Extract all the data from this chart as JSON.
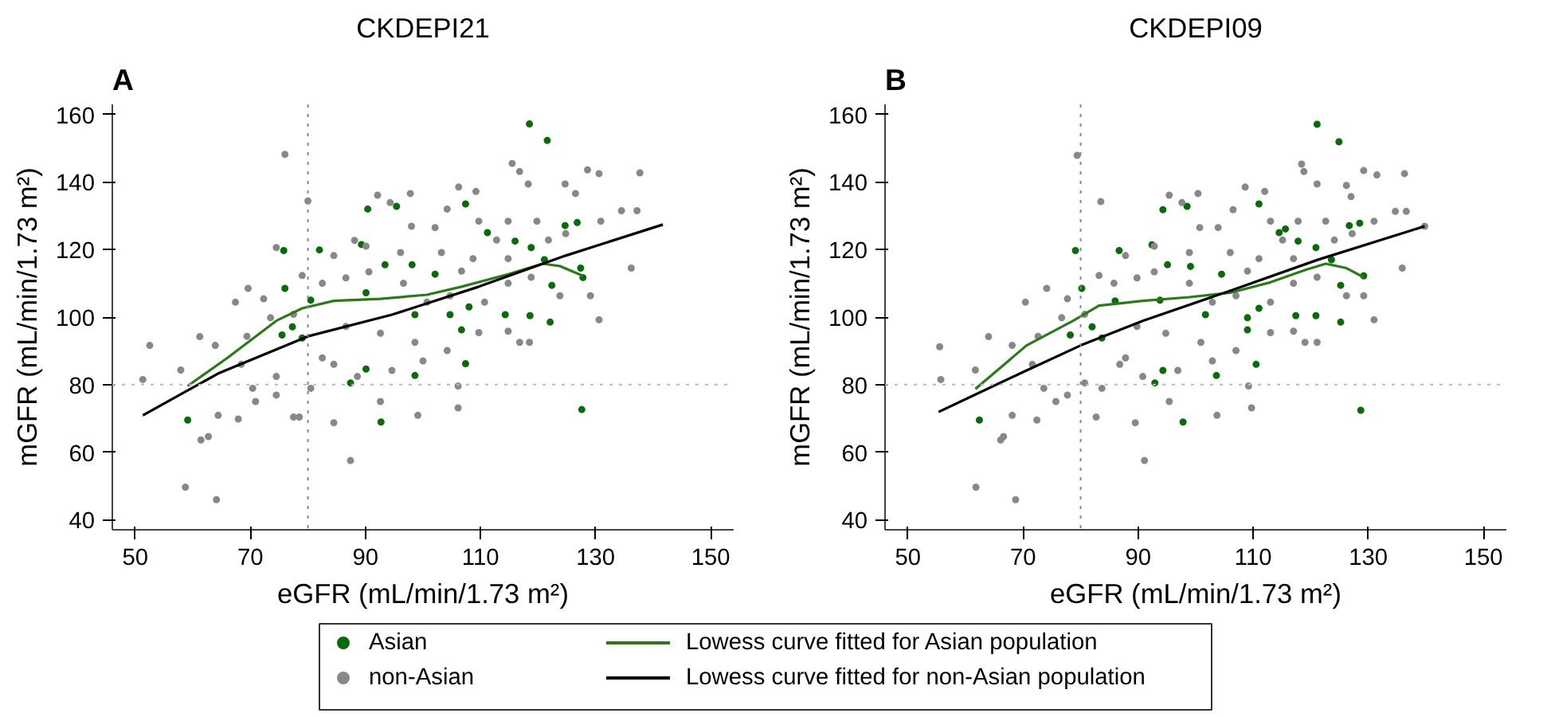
{
  "chart_data": [
    {
      "type": "scatter",
      "title": "CKDEPI21",
      "annotations": [
        "A"
      ],
      "xlabel": "eGFR (mL/min/1.73 m²)",
      "ylabel": "mGFR (mL/min/1.73 m²)",
      "xlim": [
        46,
        154
      ],
      "ylim": [
        37,
        163
      ],
      "xticks": [
        50,
        70,
        90,
        110,
        130,
        150
      ],
      "yticks": [
        40,
        60,
        80,
        100,
        120,
        140,
        160
      ],
      "marker": "circle",
      "legend": "bottom",
      "ref_lines": [
        {
          "axis": "x",
          "value": 80,
          "color": "#888888",
          "line_style": "dotted"
        },
        {
          "axis": "y",
          "value": 80,
          "color": "#bbbbbb",
          "line_style": "dotted"
        }
      ],
      "series": [
        {
          "name": "Asian",
          "color": "#0b6b0b",
          "x": [
            118.5,
            121.6,
            90.4,
            95.4,
            107.4,
            89.3,
            75.8,
            82.0,
            76.0,
            111.2,
            124.7,
            126.8,
            116.0,
            118.8,
            93.4,
            98.1,
            102.1,
            90.1,
            80.5,
            98.6,
            104.7,
            108.0,
            75.5,
            77.3,
            79.0,
            90.1,
            87.4,
            98.6,
            107.4,
            106.7,
            114.3,
            118.6,
            122.1,
            122.4,
            127.4,
            127.6,
            59.1,
            92.7,
            127.8,
            121.1
          ],
          "values": [
            157.2,
            152.3,
            132.0,
            132.8,
            133.5,
            121.5,
            119.7,
            119.9,
            108.5,
            125.0,
            127.1,
            128.0,
            122.5,
            120.6,
            115.5,
            115.5,
            112.7,
            107.2,
            105.0,
            100.7,
            100.7,
            103.0,
            94.7,
            97.1,
            93.8,
            84.6,
            80.5,
            82.7,
            86.2,
            96.2,
            100.7,
            100.4,
            98.5,
            109.4,
            114.5,
            72.6,
            69.5,
            68.9,
            111.7,
            117.0
          ]
        },
        {
          "name": "non-Asian",
          "color": "#888888",
          "x": [
            51.3,
            52.5,
            57.9,
            58.7,
            61.2,
            61.4,
            62.7,
            64.1,
            63.9,
            64.4,
            67.4,
            67.9,
            69.6,
            70.9,
            72.3,
            74.5,
            74.5,
            76.0,
            77.5,
            79.0,
            80.0,
            78.5,
            82.5,
            84.5,
            87.4,
            88.1,
            92.1,
            92.6,
            94.3,
            97.8,
            98.0,
            99.1,
            102.1,
            104.2,
            106.1,
            106.1,
            106.2,
            109.2,
            109.7,
            114.8,
            115.5,
            116.8,
            118.3,
            118.5,
            119.8,
            124.7,
            126.5,
            128.6,
            130.6,
            130.9,
            130.6,
            129.1,
            134.5,
            136.2,
            137.2,
            137.7,
            114.8,
            116.8,
            109.7,
            104.2,
            100.0,
            94.6,
            88.6,
            84.5,
            80.5,
            74.5,
            70.4,
            68.4,
            69.4,
            73.5,
            86.6,
            90.6,
            96.6,
            100.7,
            104.7,
            110.7,
            114.8,
            118.8,
            123.8,
            108.7,
            112.8,
            103.2,
            96.1,
            90.1,
            84.5,
            82.5,
            77.5,
            86.6,
            92.6,
            98.6,
            106.7,
            114.8,
            121.8,
            124.8
          ],
          "values": [
            81.5,
            91.6,
            84.3,
            49.6,
            94.2,
            63.6,
            64.6,
            45.9,
            91.6,
            70.9,
            104.4,
            69.8,
            108.5,
            75.0,
            105.4,
            120.6,
            82.4,
            148.2,
            70.4,
            112.3,
            134.4,
            70.4,
            87.9,
            68.7,
            57.5,
            122.7,
            136.1,
            75.0,
            133.9,
            136.6,
            126.9,
            70.9,
            126.5,
            132.0,
            73.1,
            79.6,
            138.5,
            137.2,
            128.4,
            128.4,
            145.5,
            143.1,
            139.4,
            92.5,
            128.4,
            139.4,
            136.6,
            143.6,
            142.5,
            128.4,
            99.2,
            106.3,
            131.5,
            114.5,
            131.5,
            142.7,
            95.8,
            92.5,
            95.4,
            90.1,
            87.0,
            84.2,
            82.4,
            86.0,
            78.9,
            76.9,
            78.9,
            86.0,
            94.3,
            99.8,
            111.6,
            113.4,
            110.0,
            104.4,
            106.3,
            104.4,
            110.0,
            111.8,
            106.3,
            117.3,
            122.8,
            119.1,
            119.1,
            121.0,
            118.2,
            110.0,
            100.8,
            97.2,
            95.2,
            92.5,
            113.6,
            117.3,
            122.8,
            124.7
          ]
        },
        {
          "name": "Lowess curve fitted for Asian population",
          "type": "line",
          "marker": "none",
          "color": "#2a7a1a",
          "x": [
            59.1,
            66.0,
            74.5,
            79.0,
            84.5,
            92.6,
            100.7,
            106.7,
            114.8,
            120.8,
            123.8,
            127.8
          ],
          "values": [
            79.6,
            87.9,
            98.9,
            102.6,
            104.8,
            105.4,
            106.6,
            109.0,
            112.7,
            115.8,
            115.1,
            112.2
          ]
        },
        {
          "name": "Lowess curve fitted for non-Asian population",
          "type": "line",
          "marker": "none",
          "color": "#000000",
          "x": [
            51.3,
            64.4,
            80.0,
            94.6,
            109.7,
            124.8,
            141.7
          ],
          "values": [
            70.9,
            83.3,
            94.3,
            100.7,
            109.0,
            118.2,
            127.4
          ]
        }
      ]
    },
    {
      "type": "scatter",
      "title": "CKDEPI09",
      "annotations": [
        "B"
      ],
      "xlabel": "eGFR (mL/min/1.73 m²)",
      "ylabel": "mGFR (mL/min/1.73 m²)",
      "xlim": [
        46,
        154
      ],
      "ylim": [
        37,
        163
      ],
      "xticks": [
        50,
        70,
        90,
        110,
        130,
        150
      ],
      "yticks": [
        40,
        60,
        80,
        100,
        120,
        140,
        160
      ],
      "marker": "circle",
      "ref_lines": [
        {
          "axis": "x",
          "value": 80,
          "color": "#888888",
          "line_style": "dotted"
        },
        {
          "axis": "y",
          "value": 80,
          "color": "#bbbbbb",
          "line_style": "dotted"
        }
      ],
      "series": [
        {
          "color": "#0b6b0b",
          "x": [
            121.1,
            124.9,
            94.3,
            98.5,
            111.0,
            92.4,
            79.1,
            86.7,
            80.2,
            114.5,
            126.7,
            128.5,
            117.8,
            120.9,
            95.1,
            99.1,
            104.5,
            93.8,
            86.0,
            101.7,
            109.0,
            111.0,
            78.2,
            82.0,
            83.7,
            94.3,
            92.9,
            103.6,
            110.5,
            109.0,
            117.4,
            120.9,
            125.2,
            125.2,
            129.2,
            128.7,
            62.4,
            97.8,
            123.6,
            115.6
          ],
          "values": [
            157.1,
            151.9,
            131.8,
            132.8,
            133.5,
            121.4,
            119.7,
            119.7,
            108.5,
            125.0,
            127.1,
            127.8,
            122.5,
            120.6,
            115.5,
            115.0,
            112.7,
            105.0,
            104.8,
            100.7,
            99.8,
            102.6,
            94.7,
            97.1,
            93.8,
            84.2,
            80.5,
            82.7,
            86.0,
            96.2,
            100.4,
            100.4,
            98.5,
            109.4,
            112.2,
            72.4,
            69.5,
            68.9,
            117.0,
            126.1
          ]
        },
        {
          "color": "#888888",
          "x": [
            55.5,
            55.7,
            61.7,
            61.8,
            64.0,
            66.1,
            66.6,
            68.7,
            68.1,
            68.1,
            70.4,
            72.4,
            74.1,
            75.7,
            77.7,
            79.4,
            83.5,
            82.7,
            83.2,
            80.7,
            87.8,
            89.5,
            91.1,
            95.4,
            95.4,
            97.6,
            100.4,
            100.7,
            103.7,
            103.9,
            106.5,
            109.7,
            109.2,
            108.6,
            112.0,
            113.0,
            117.8,
            118.4,
            118.8,
            121.1,
            121.1,
            122.6,
            126.2,
            127.0,
            129.2,
            131.5,
            131.0,
            131.0,
            129.2,
            134.7,
            135.9,
            136.6,
            136.3,
            139.8,
            117.0,
            119.0,
            113.0,
            107.0,
            102.9,
            96.9,
            90.8,
            86.8,
            83.7,
            77.7,
            73.6,
            71.6,
            72.6,
            76.7,
            89.8,
            92.8,
            98.9,
            102.9,
            107.0,
            113.0,
            117.0,
            121.1,
            126.2,
            111.0,
            115.1,
            106.0,
            98.9,
            92.8,
            87.8,
            85.8,
            80.7,
            89.8,
            94.8,
            100.9,
            109.0,
            117.0,
            124.1,
            127.2
          ],
          "values": [
            91.2,
            81.5,
            84.3,
            49.6,
            94.2,
            63.6,
            64.6,
            45.9,
            91.6,
            70.9,
            104.4,
            69.5,
            108.5,
            75.0,
            105.4,
            147.9,
            134.2,
            70.4,
            112.3,
            80.5,
            87.9,
            68.7,
            57.5,
            136.1,
            75.0,
            133.9,
            136.6,
            126.5,
            70.9,
            126.5,
            131.8,
            73.1,
            79.6,
            138.5,
            137.2,
            128.4,
            128.4,
            145.3,
            143.1,
            139.4,
            92.5,
            128.4,
            139.0,
            135.7,
            143.4,
            142.1,
            128.4,
            99.2,
            106.3,
            131.3,
            114.5,
            131.3,
            142.5,
            126.9,
            95.8,
            92.5,
            95.4,
            90.1,
            87.0,
            84.2,
            82.4,
            86.0,
            78.9,
            76.9,
            78.9,
            86.0,
            94.3,
            99.8,
            111.6,
            113.4,
            110.0,
            104.4,
            106.3,
            104.4,
            110.0,
            111.8,
            106.3,
            117.3,
            122.8,
            119.1,
            119.1,
            121.0,
            118.2,
            110.0,
            100.8,
            97.2,
            95.2,
            92.5,
            113.6,
            117.3,
            122.8,
            124.7
          ]
        },
        {
          "type": "line",
          "marker": "none",
          "color": "#2a7a1a",
          "x": [
            61.7,
            70.6,
            78.7,
            83.2,
            90.8,
            98.9,
            106.0,
            113.0,
            119.1,
            122.6,
            126.2,
            129.2
          ],
          "values": [
            78.7,
            91.6,
            98.9,
            103.4,
            104.8,
            105.9,
            107.2,
            110.3,
            114.0,
            115.8,
            114.5,
            111.8
          ]
        },
        {
          "type": "line",
          "marker": "none",
          "color": "#000000",
          "x": [
            55.3,
            70.6,
            80.0,
            90.8,
            106.0,
            121.1,
            139.8
          ],
          "values": [
            71.9,
            84.2,
            91.6,
            98.9,
            107.8,
            116.9,
            126.9
          ]
        }
      ]
    }
  ]
}
